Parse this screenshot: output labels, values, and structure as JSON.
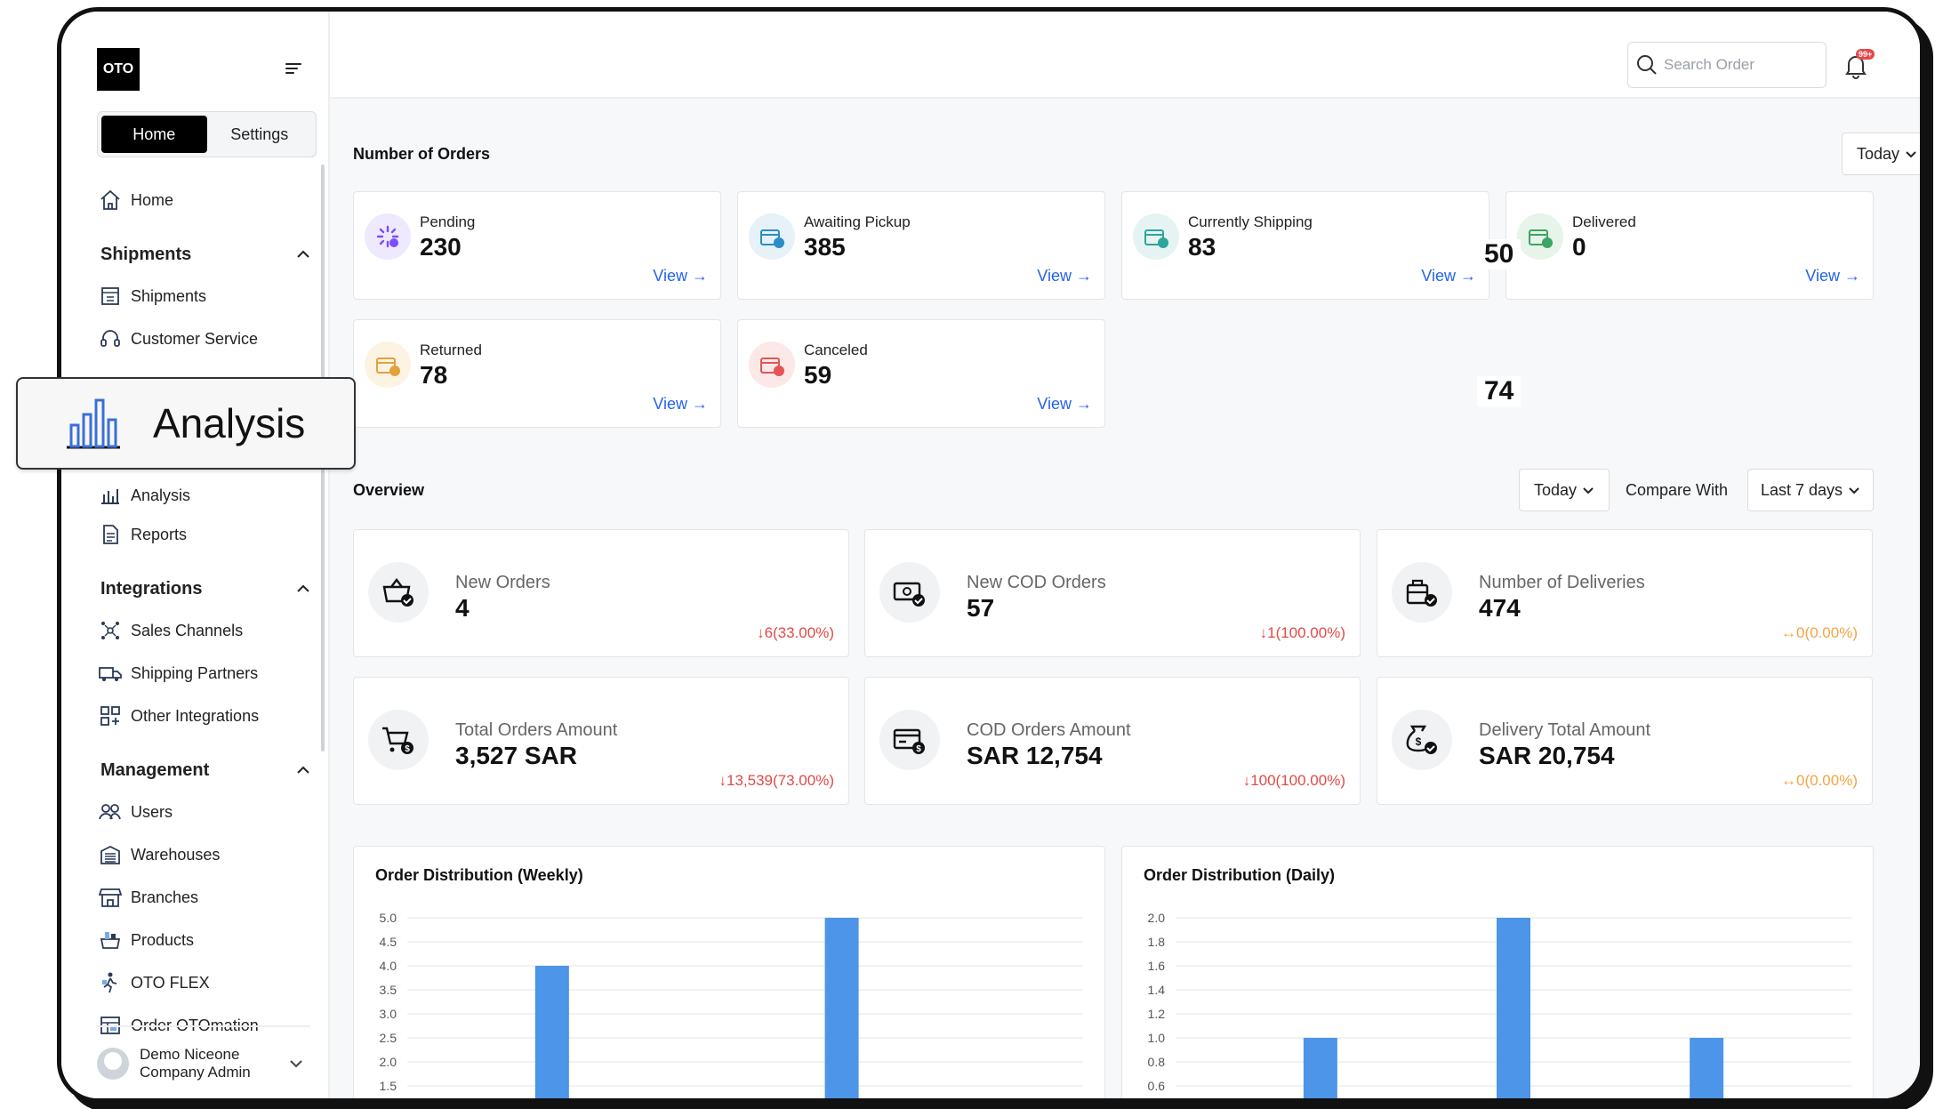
{
  "sidebar": {
    "logo": "OTO",
    "segments": [
      "Home",
      "Settings"
    ],
    "home": "Home",
    "sections": [
      {
        "title": "Shipments",
        "items": [
          "Shipments",
          "Customer Service"
        ]
      },
      {
        "title": "Integrations",
        "items": [
          "Sales Channels",
          "Shipping Partners",
          "Other Integrations"
        ]
      },
      {
        "title": "Management",
        "items": [
          "Users",
          "Warehouses",
          "Branches",
          "Products",
          "OTO FLEX",
          "Order OTOmation"
        ]
      }
    ],
    "hidden_partial": "Analysis",
    "reports": "Reports",
    "user": {
      "name": "Demo Niceone",
      "role": "Company Admin"
    }
  },
  "overlay": {
    "label": "Analysis"
  },
  "topbar": {
    "search_placeholder": "Search Order",
    "notification_badge": "99+"
  },
  "orders": {
    "title": "Number of Orders",
    "period": "Today",
    "view_label": "View",
    "cards": [
      {
        "label": "Pending",
        "value": "230",
        "icon": "pending-icon",
        "color": "#7c4dff"
      },
      {
        "label": "Awaiting Pickup",
        "value": "385",
        "icon": "box-clock-icon",
        "color": "#2d8cc4"
      },
      {
        "label": "Currently Shipping",
        "value": "83",
        "icon": "box-up-icon",
        "color": "#2ea59a"
      },
      {
        "label": "Delivered",
        "value": "0",
        "icon": "box-check-icon",
        "color": "#3aa564"
      },
      {
        "label": "Returned",
        "value": "78",
        "icon": "box-return-icon",
        "color": "#e2a23b"
      },
      {
        "label": "Canceled",
        "value": "59",
        "icon": "box-x-icon",
        "color": "#e25555"
      }
    ],
    "floating_values": [
      "50",
      "74"
    ]
  },
  "overview": {
    "title": "Overview",
    "period": "Today",
    "compare_label": "Compare With",
    "compare_period": "Last 7 days",
    "cards": [
      {
        "label": "New Orders",
        "value": "4",
        "change": "6(33.00%)",
        "trend": "down",
        "icon": "basket-check-icon"
      },
      {
        "label": "New COD Orders",
        "value": "57",
        "change": "1(100.00%)",
        "trend": "down",
        "icon": "cash-check-icon"
      },
      {
        "label": "Number of Deliveries",
        "value": "474",
        "change": "0(0.00%)",
        "trend": "flat",
        "icon": "boxes-check-icon"
      },
      {
        "label": "Total Orders Amount",
        "value": "3,527 SAR",
        "change": "13,539(73.00%)",
        "trend": "down",
        "icon": "cart-dollar-icon"
      },
      {
        "label": "COD Orders Amount",
        "value": "SAR 12,754",
        "change": "100(100.00%)",
        "trend": "down",
        "icon": "card-dollar-icon"
      },
      {
        "label": "Delivery Total Amount",
        "value": "SAR 20,754",
        "change": "0(0.00%)",
        "trend": "flat",
        "icon": "moneybag-check-icon"
      }
    ]
  },
  "colors": {
    "accent": "#2563eb",
    "bar": "#4c95e8",
    "down": "#e04b45",
    "flat": "#f2a444"
  },
  "chart_data": [
    {
      "type": "bar",
      "title": "Order Distribution (Weekly)",
      "y_ticks": [
        5.0,
        4.5,
        4.0,
        3.5,
        3.0,
        2.5,
        2.0,
        1.5
      ],
      "ylim": [
        0,
        5.0
      ],
      "categories": [
        "",
        "",
        "",
        "",
        "",
        "",
        ""
      ],
      "values": [
        0,
        4,
        0,
        0,
        5,
        0,
        0
      ],
      "visible_ylim": [
        1.5,
        5.0
      ]
    },
    {
      "type": "bar",
      "title": "Order Distribution (Daily)",
      "y_ticks": [
        2.0,
        1.8,
        1.6,
        1.4,
        1.2,
        1.0,
        0.8,
        0.6
      ],
      "ylim": [
        0,
        2.0
      ],
      "categories": [
        "",
        "",
        "",
        "",
        "",
        "",
        ""
      ],
      "values": [
        0,
        1,
        0,
        2,
        0,
        1,
        0
      ],
      "visible_ylim": [
        0.6,
        2.0
      ]
    }
  ]
}
